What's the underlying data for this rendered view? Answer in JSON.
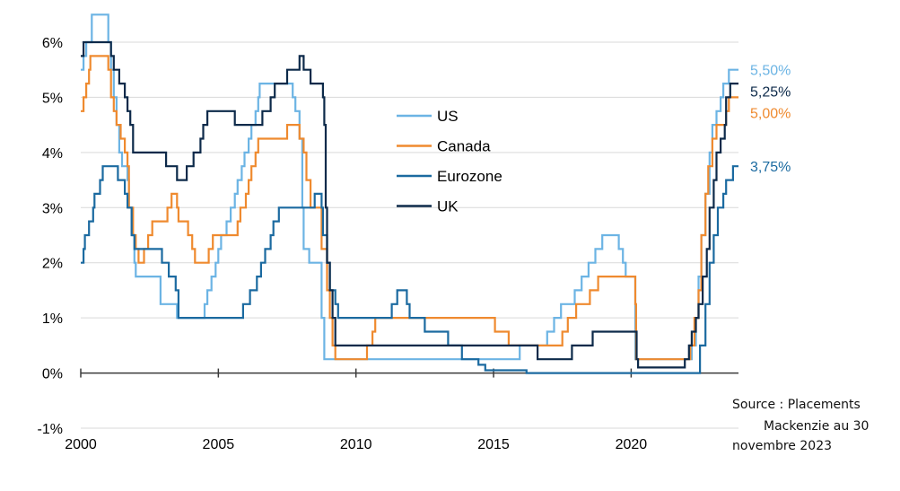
{
  "chart_data": {
    "type": "line",
    "title": "",
    "xlabel": "",
    "ylabel": "",
    "xlim": [
      2000,
      2023.9
    ],
    "ylim": [
      -1,
      6
    ],
    "x_ticks": [
      "2000",
      "2005",
      "2010",
      "2015",
      "2020"
    ],
    "y_ticks": [
      "6%",
      "5%",
      "4%",
      "3%",
      "2%",
      "1%",
      "0%",
      "-1%"
    ],
    "grid": "horizontal",
    "legend_position": "center",
    "series": [
      {
        "name": "US",
        "color": "#6cb4e4",
        "end_label": "5,50%",
        "points": [
          [
            2000.0,
            5.5
          ],
          [
            2000.1,
            5.75
          ],
          [
            2000.2,
            6.0
          ],
          [
            2000.4,
            6.5
          ],
          [
            2001.0,
            6.0
          ],
          [
            2001.1,
            5.5
          ],
          [
            2001.2,
            5.0
          ],
          [
            2001.3,
            4.5
          ],
          [
            2001.4,
            4.0
          ],
          [
            2001.5,
            3.75
          ],
          [
            2001.7,
            3.5
          ],
          [
            2001.75,
            3.0
          ],
          [
            2001.85,
            2.5
          ],
          [
            2001.95,
            2.0
          ],
          [
            2002.0,
            1.75
          ],
          [
            2002.9,
            1.25
          ],
          [
            2003.5,
            1.0
          ],
          [
            2004.5,
            1.25
          ],
          [
            2004.6,
            1.5
          ],
          [
            2004.75,
            1.75
          ],
          [
            2004.9,
            2.0
          ],
          [
            2005.0,
            2.25
          ],
          [
            2005.1,
            2.5
          ],
          [
            2005.3,
            2.75
          ],
          [
            2005.45,
            3.0
          ],
          [
            2005.6,
            3.25
          ],
          [
            2005.7,
            3.5
          ],
          [
            2005.85,
            3.75
          ],
          [
            2005.95,
            4.0
          ],
          [
            2006.1,
            4.25
          ],
          [
            2006.2,
            4.5
          ],
          [
            2006.35,
            4.75
          ],
          [
            2006.45,
            5.0
          ],
          [
            2006.5,
            5.25
          ],
          [
            2007.7,
            5.0
          ],
          [
            2007.8,
            4.75
          ],
          [
            2007.95,
            4.25
          ],
          [
            2008.05,
            3.0
          ],
          [
            2008.1,
            2.25
          ],
          [
            2008.3,
            2.0
          ],
          [
            2008.75,
            1.0
          ],
          [
            2008.85,
            0.25
          ],
          [
            2015.95,
            0.5
          ],
          [
            2016.95,
            0.75
          ],
          [
            2017.2,
            1.0
          ],
          [
            2017.45,
            1.25
          ],
          [
            2017.95,
            1.5
          ],
          [
            2018.2,
            1.75
          ],
          [
            2018.45,
            2.0
          ],
          [
            2018.7,
            2.25
          ],
          [
            2018.95,
            2.5
          ],
          [
            2019.55,
            2.25
          ],
          [
            2019.7,
            2.0
          ],
          [
            2019.8,
            1.75
          ],
          [
            2020.15,
            0.25
          ],
          [
            2022.2,
            0.5
          ],
          [
            2022.35,
            1.0
          ],
          [
            2022.45,
            1.75
          ],
          [
            2022.55,
            2.5
          ],
          [
            2022.7,
            3.25
          ],
          [
            2022.85,
            4.0
          ],
          [
            2022.95,
            4.5
          ],
          [
            2023.1,
            4.75
          ],
          [
            2023.25,
            5.0
          ],
          [
            2023.35,
            5.25
          ],
          [
            2023.55,
            5.5
          ],
          [
            2023.9,
            5.5
          ]
        ]
      },
      {
        "name": "Canada",
        "color": "#ef8a2f",
        "end_label": "5,00%",
        "points": [
          [
            2000.0,
            4.75
          ],
          [
            2000.1,
            5.0
          ],
          [
            2000.2,
            5.25
          ],
          [
            2000.3,
            5.5
          ],
          [
            2000.35,
            5.75
          ],
          [
            2001.0,
            5.5
          ],
          [
            2001.1,
            5.0
          ],
          [
            2001.2,
            4.75
          ],
          [
            2001.3,
            4.5
          ],
          [
            2001.45,
            4.25
          ],
          [
            2001.6,
            4.0
          ],
          [
            2001.7,
            3.75
          ],
          [
            2001.75,
            3.0
          ],
          [
            2001.9,
            2.5
          ],
          [
            2002.0,
            2.25
          ],
          [
            2002.1,
            2.0
          ],
          [
            2002.3,
            2.25
          ],
          [
            2002.45,
            2.5
          ],
          [
            2002.6,
            2.75
          ],
          [
            2003.15,
            3.0
          ],
          [
            2003.3,
            3.25
          ],
          [
            2003.5,
            3.0
          ],
          [
            2003.55,
            2.75
          ],
          [
            2003.9,
            2.5
          ],
          [
            2004.05,
            2.25
          ],
          [
            2004.15,
            2.0
          ],
          [
            2004.65,
            2.25
          ],
          [
            2004.8,
            2.5
          ],
          [
            2005.7,
            2.75
          ],
          [
            2005.8,
            3.0
          ],
          [
            2006.0,
            3.25
          ],
          [
            2006.1,
            3.5
          ],
          [
            2006.2,
            3.75
          ],
          [
            2006.35,
            4.0
          ],
          [
            2006.45,
            4.25
          ],
          [
            2007.5,
            4.5
          ],
          [
            2007.95,
            4.25
          ],
          [
            2008.1,
            4.0
          ],
          [
            2008.2,
            3.5
          ],
          [
            2008.35,
            3.0
          ],
          [
            2008.75,
            2.25
          ],
          [
            2008.95,
            1.5
          ],
          [
            2009.05,
            1.0
          ],
          [
            2009.15,
            0.5
          ],
          [
            2009.25,
            0.25
          ],
          [
            2010.4,
            0.5
          ],
          [
            2010.6,
            0.75
          ],
          [
            2010.7,
            1.0
          ],
          [
            2015.05,
            0.75
          ],
          [
            2015.55,
            0.5
          ],
          [
            2017.5,
            0.75
          ],
          [
            2017.7,
            1.0
          ],
          [
            2018.0,
            1.25
          ],
          [
            2018.5,
            1.5
          ],
          [
            2018.8,
            1.75
          ],
          [
            2020.15,
            1.25
          ],
          [
            2020.18,
            0.25
          ],
          [
            2022.15,
            0.5
          ],
          [
            2022.3,
            1.0
          ],
          [
            2022.45,
            1.5
          ],
          [
            2022.55,
            2.5
          ],
          [
            2022.7,
            3.25
          ],
          [
            2022.8,
            3.75
          ],
          [
            2022.95,
            4.25
          ],
          [
            2023.1,
            4.5
          ],
          [
            2023.45,
            4.75
          ],
          [
            2023.55,
            5.0
          ],
          [
            2023.9,
            5.0
          ]
        ]
      },
      {
        "name": "Eurozone",
        "color": "#1b6aa0",
        "end_label": "3,75%",
        "points": [
          [
            2000.0,
            2.0
          ],
          [
            2000.1,
            2.25
          ],
          [
            2000.15,
            2.5
          ],
          [
            2000.3,
            2.75
          ],
          [
            2000.45,
            3.0
          ],
          [
            2000.5,
            3.25
          ],
          [
            2000.7,
            3.5
          ],
          [
            2000.8,
            3.75
          ],
          [
            2001.35,
            3.5
          ],
          [
            2001.6,
            3.25
          ],
          [
            2001.7,
            3.0
          ],
          [
            2001.85,
            2.5
          ],
          [
            2001.95,
            2.25
          ],
          [
            2002.95,
            2.0
          ],
          [
            2003.2,
            1.75
          ],
          [
            2003.45,
            1.5
          ],
          [
            2003.55,
            1.0
          ],
          [
            2005.9,
            1.25
          ],
          [
            2006.15,
            1.5
          ],
          [
            2006.4,
            1.75
          ],
          [
            2006.55,
            2.0
          ],
          [
            2006.7,
            2.25
          ],
          [
            2006.9,
            2.5
          ],
          [
            2007.0,
            2.75
          ],
          [
            2007.2,
            3.0
          ],
          [
            2007.45,
            3.0
          ],
          [
            2008.5,
            3.25
          ],
          [
            2008.75,
            3.0
          ],
          [
            2008.8,
            2.5
          ],
          [
            2008.95,
            2.0
          ],
          [
            2009.05,
            1.5
          ],
          [
            2009.25,
            1.25
          ],
          [
            2009.35,
            1.0
          ],
          [
            2011.3,
            1.25
          ],
          [
            2011.5,
            1.5
          ],
          [
            2011.85,
            1.25
          ],
          [
            2011.95,
            1.0
          ],
          [
            2012.5,
            0.75
          ],
          [
            2013.35,
            0.5
          ],
          [
            2013.85,
            0.25
          ],
          [
            2014.45,
            0.15
          ],
          [
            2014.7,
            0.05
          ],
          [
            2016.2,
            0.0
          ],
          [
            2022.5,
            0.5
          ],
          [
            2022.7,
            1.25
          ],
          [
            2022.85,
            2.0
          ],
          [
            2023.0,
            2.5
          ],
          [
            2023.15,
            3.0
          ],
          [
            2023.35,
            3.25
          ],
          [
            2023.45,
            3.5
          ],
          [
            2023.7,
            3.75
          ],
          [
            2023.9,
            3.75
          ]
        ]
      },
      {
        "name": "UK",
        "color": "#0d2a4a",
        "end_label": "5,25%",
        "points": [
          [
            2000.0,
            5.75
          ],
          [
            2000.1,
            6.0
          ],
          [
            2001.1,
            5.75
          ],
          [
            2001.2,
            5.5
          ],
          [
            2001.4,
            5.25
          ],
          [
            2001.6,
            5.0
          ],
          [
            2001.7,
            4.75
          ],
          [
            2001.8,
            4.5
          ],
          [
            2001.9,
            4.0
          ],
          [
            2003.1,
            3.75
          ],
          [
            2003.5,
            3.5
          ],
          [
            2003.85,
            3.75
          ],
          [
            2004.1,
            4.0
          ],
          [
            2004.35,
            4.25
          ],
          [
            2004.45,
            4.5
          ],
          [
            2004.6,
            4.75
          ],
          [
            2005.6,
            4.5
          ],
          [
            2006.6,
            4.75
          ],
          [
            2006.9,
            5.0
          ],
          [
            2007.05,
            5.25
          ],
          [
            2007.5,
            5.5
          ],
          [
            2007.95,
            5.75
          ],
          [
            2008.1,
            5.5
          ],
          [
            2008.35,
            5.25
          ],
          [
            2008.8,
            5.0
          ],
          [
            2008.85,
            4.5
          ],
          [
            2008.9,
            3.0
          ],
          [
            2008.95,
            2.0
          ],
          [
            2009.05,
            1.5
          ],
          [
            2009.15,
            1.0
          ],
          [
            2009.25,
            0.5
          ],
          [
            2016.6,
            0.25
          ],
          [
            2017.85,
            0.5
          ],
          [
            2018.6,
            0.75
          ],
          [
            2020.2,
            0.25
          ],
          [
            2020.25,
            0.1
          ],
          [
            2021.95,
            0.25
          ],
          [
            2022.1,
            0.5
          ],
          [
            2022.2,
            0.75
          ],
          [
            2022.35,
            1.0
          ],
          [
            2022.45,
            1.25
          ],
          [
            2022.6,
            1.75
          ],
          [
            2022.75,
            2.25
          ],
          [
            2022.85,
            3.0
          ],
          [
            2023.0,
            3.5
          ],
          [
            2023.1,
            4.0
          ],
          [
            2023.25,
            4.25
          ],
          [
            2023.4,
            4.5
          ],
          [
            2023.45,
            5.0
          ],
          [
            2023.6,
            5.25
          ],
          [
            2023.9,
            5.25
          ]
        ]
      }
    ]
  },
  "source_note": {
    "line1": "Source : Placements",
    "line2": "Mackenzie au 30",
    "line3": "novembre 2023"
  }
}
